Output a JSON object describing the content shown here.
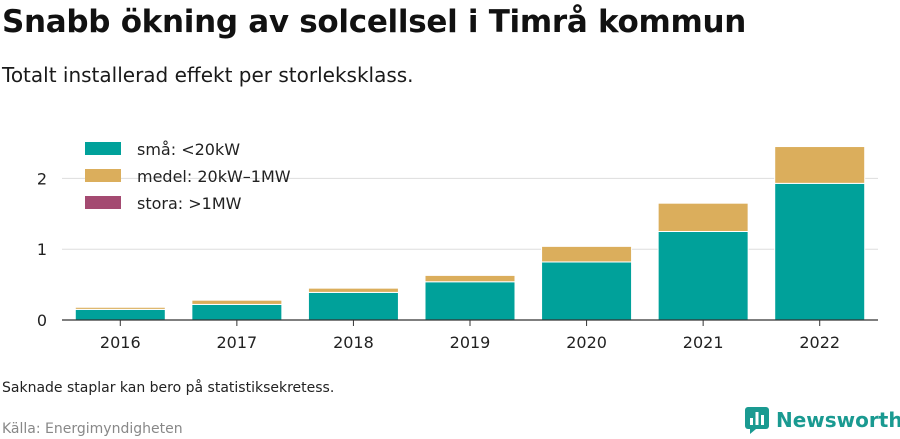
{
  "header": {
    "title": "Snabb ökning av solcellsel i Timrå kommun",
    "subtitle": "Totalt installerad effekt per storleksklass."
  },
  "footer": {
    "note": "Saknade staplar kan bero på statistiksekretess.",
    "source": "Källa: Energimyndigheten",
    "brand": "Newsworthy",
    "brand_icon": "bar-chart-logo-icon"
  },
  "colors": {
    "sma": "#00a19a",
    "medel": "#dbae5c",
    "stora": "#a44a71",
    "brand": "#1a9a91"
  },
  "chart_data": {
    "type": "bar",
    "stacked": true,
    "categories": [
      "2016",
      "2017",
      "2018",
      "2019",
      "2020",
      "2021",
      "2022"
    ],
    "series": [
      {
        "name": "små: <20kW",
        "color": "#00a19a",
        "values": [
          0.15,
          0.22,
          0.39,
          0.54,
          0.82,
          1.25,
          1.93
        ]
      },
      {
        "name": "medel: 20kW–1MW",
        "color": "#dbae5c",
        "values": [
          0.03,
          0.06,
          0.06,
          0.09,
          0.22,
          0.4,
          0.52
        ]
      },
      {
        "name": "stora: >1MW",
        "color": "#a44a71",
        "values": [
          0,
          0,
          0,
          0,
          0,
          0,
          0
        ]
      }
    ],
    "yticks": [
      0,
      1,
      2
    ],
    "ylim": [
      0,
      2.5
    ],
    "grid": true,
    "legend_position": "top-left"
  }
}
